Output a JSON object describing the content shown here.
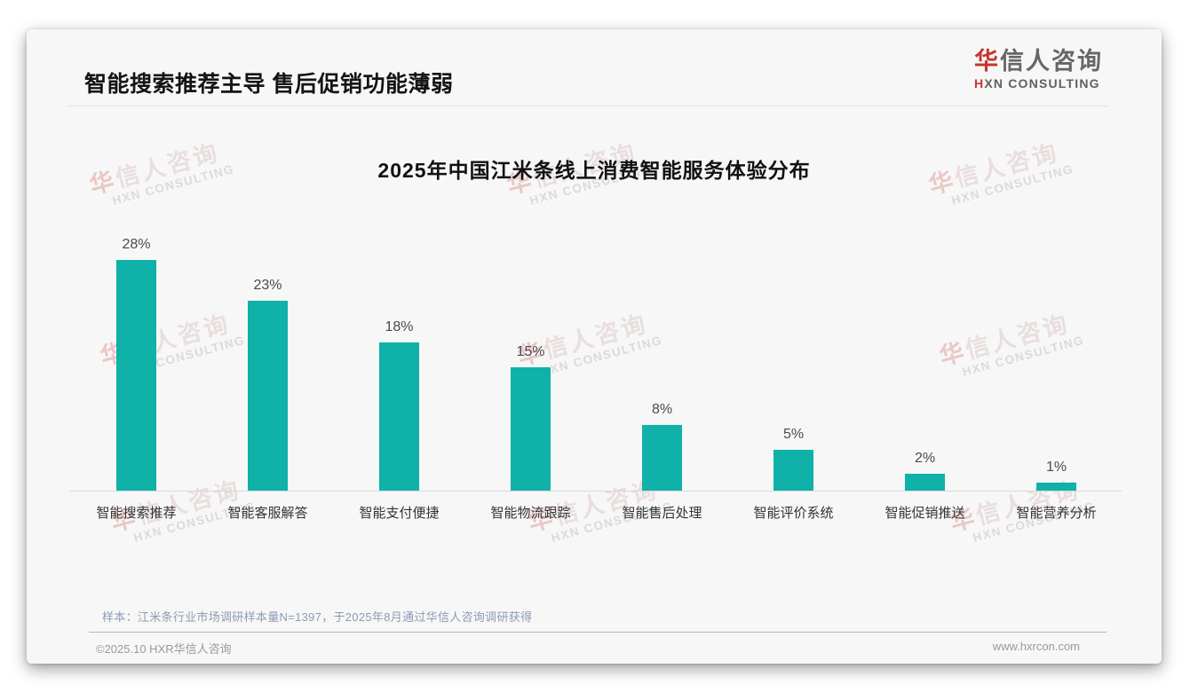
{
  "header": {
    "title": "智能搜索推荐主导 售后促销功能薄弱"
  },
  "logo": {
    "cn_first": "华",
    "cn_rest": "信人咨询",
    "en_first": "H",
    "en_rest": "XN CONSULTING"
  },
  "watermark": {
    "cn_first": "华",
    "cn_rest": "信人咨询",
    "en": "HXN CONSULTING"
  },
  "chart_data": {
    "type": "bar",
    "title": "2025年中国江米条线上消费智能服务体验分布",
    "categories": [
      "智能搜索推荐",
      "智能客服解答",
      "智能支付便捷",
      "智能物流跟踪",
      "智能售后处理",
      "智能评价系统",
      "智能促销推送",
      "智能营养分析"
    ],
    "values": [
      28,
      23,
      18,
      15,
      8,
      5,
      2,
      1
    ],
    "unit": "%",
    "value_labels": [
      "28%",
      "23%",
      "18%",
      "15%",
      "8%",
      "5%",
      "2%",
      "1%"
    ],
    "bar_color": "#0fb1a8",
    "xlabel": "",
    "ylabel": "",
    "ylim": [
      0,
      30
    ],
    "grid": false,
    "legend": null
  },
  "footnote": "样本：江米条行业市场调研样本量N=1397，于2025年8月通过华信人咨询调研获得",
  "footer": {
    "left": "©2025.10 HXR华信人咨询",
    "right": "www.hxrcon.com"
  }
}
